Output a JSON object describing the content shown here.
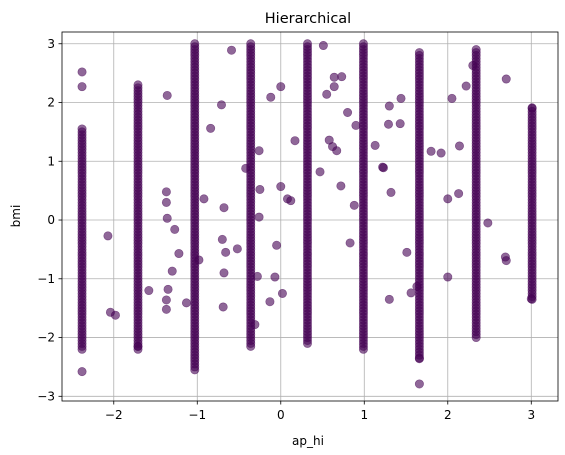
{
  "chart_data": {
    "type": "scatter",
    "title": "Hierarchical",
    "xlabel": "ap_hi",
    "ylabel": "bmi",
    "xlim": [
      -2.62,
      3.32
    ],
    "ylim": [
      -3.08,
      3.2
    ],
    "xticks": [
      -2,
      -1,
      0,
      1,
      2,
      3
    ],
    "yticks": [
      -3,
      -2,
      -1,
      0,
      1,
      2,
      3
    ],
    "grid": true,
    "point_color": "#440154",
    "point_alpha": 0.6,
    "columns": [
      {
        "x": -2.38,
        "ymin": -2.2,
        "ymax": 1.55
      },
      {
        "x": -1.71,
        "ymin": -2.2,
        "ymax": 2.3
      },
      {
        "x": -1.03,
        "ymin": -2.55,
        "ymax": 3.0
      },
      {
        "x": -0.36,
        "ymin": -2.15,
        "ymax": 3.0
      },
      {
        "x": 0.32,
        "ymin": -2.1,
        "ymax": 3.0
      },
      {
        "x": 0.99,
        "ymin": -2.2,
        "ymax": 3.0
      },
      {
        "x": 1.66,
        "ymin": -2.35,
        "ymax": 2.85
      },
      {
        "x": 2.34,
        "ymin": -2.0,
        "ymax": 2.9
      },
      {
        "x": 3.01,
        "ymin": -1.35,
        "ymax": 1.9
      }
    ],
    "outliers": [
      [
        -2.38,
        2.52
      ],
      [
        -2.38,
        2.27
      ],
      [
        -2.38,
        -2.58
      ],
      [
        -2.07,
        -0.27
      ],
      [
        -2.04,
        -1.57
      ],
      [
        -1.98,
        -1.62
      ],
      [
        -1.71,
        -2.15
      ],
      [
        -1.58,
        -1.2
      ],
      [
        -1.36,
        2.12
      ],
      [
        -1.37,
        0.48
      ],
      [
        -1.37,
        0.3
      ],
      [
        -1.36,
        0.03
      ],
      [
        -1.3,
        -0.87
      ],
      [
        -1.35,
        -1.18
      ],
      [
        -1.37,
        -1.36
      ],
      [
        -1.37,
        -1.52
      ],
      [
        -1.27,
        -0.16
      ],
      [
        -1.22,
        -0.57
      ],
      [
        -1.13,
        -1.41
      ],
      [
        -0.98,
        -0.68
      ],
      [
        -0.92,
        0.36
      ],
      [
        -0.84,
        1.56
      ],
      [
        -0.68,
        0.21
      ],
      [
        -0.71,
        1.96
      ],
      [
        -0.7,
        -0.33
      ],
      [
        -0.68,
        -0.9
      ],
      [
        -0.69,
        -1.48
      ],
      [
        -0.66,
        -0.55
      ],
      [
        -0.59,
        2.89
      ],
      [
        -0.52,
        -0.49
      ],
      [
        -0.42,
        0.88
      ],
      [
        -0.26,
        0.05
      ],
      [
        -0.25,
        0.52
      ],
      [
        -0.26,
        1.18
      ],
      [
        -0.28,
        -0.96
      ],
      [
        -0.31,
        -1.78
      ],
      [
        -0.13,
        -1.39
      ],
      [
        -0.12,
        2.09
      ],
      [
        -0.05,
        -0.43
      ],
      [
        0.0,
        0.57
      ],
      [
        0.0,
        2.27
      ],
      [
        -0.07,
        -0.97
      ],
      [
        0.02,
        -1.25
      ],
      [
        0.08,
        0.36
      ],
      [
        0.12,
        0.33
      ],
      [
        0.17,
        1.35
      ],
      [
        0.47,
        0.82
      ],
      [
        0.51,
        2.97
      ],
      [
        0.55,
        2.14
      ],
      [
        0.64,
        2.43
      ],
      [
        0.58,
        1.36
      ],
      [
        0.62,
        1.25
      ],
      [
        0.67,
        1.18
      ],
      [
        0.64,
        2.27
      ],
      [
        0.83,
        -0.39
      ],
      [
        0.8,
        1.83
      ],
      [
        0.9,
        1.61
      ],
      [
        0.88,
        0.25
      ],
      [
        0.73,
        2.44
      ],
      [
        0.72,
        0.58
      ],
      [
        1.13,
        1.27
      ],
      [
        1.23,
        0.89
      ],
      [
        1.22,
        0.9
      ],
      [
        1.29,
        1.63
      ],
      [
        1.3,
        1.94
      ],
      [
        1.32,
        0.47
      ],
      [
        1.3,
        -1.35
      ],
      [
        1.43,
        1.64
      ],
      [
        1.44,
        2.07
      ],
      [
        1.51,
        -0.55
      ],
      [
        1.56,
        -1.24
      ],
      [
        1.63,
        -1.13
      ],
      [
        1.66,
        -2.79
      ],
      [
        1.66,
        -2.36
      ],
      [
        1.8,
        1.17
      ],
      [
        1.92,
        1.14
      ],
      [
        2.0,
        0.36
      ],
      [
        2.0,
        -0.97
      ],
      [
        2.05,
        2.07
      ],
      [
        2.13,
        0.45
      ],
      [
        2.14,
        1.26
      ],
      [
        2.22,
        2.28
      ],
      [
        2.3,
        2.63
      ],
      [
        2.48,
        -0.05
      ],
      [
        2.69,
        -0.63
      ],
      [
        2.7,
        -0.69
      ],
      [
        2.7,
        2.4
      ],
      [
        3.01,
        1.91
      ],
      [
        3.0,
        -1.34
      ]
    ]
  }
}
